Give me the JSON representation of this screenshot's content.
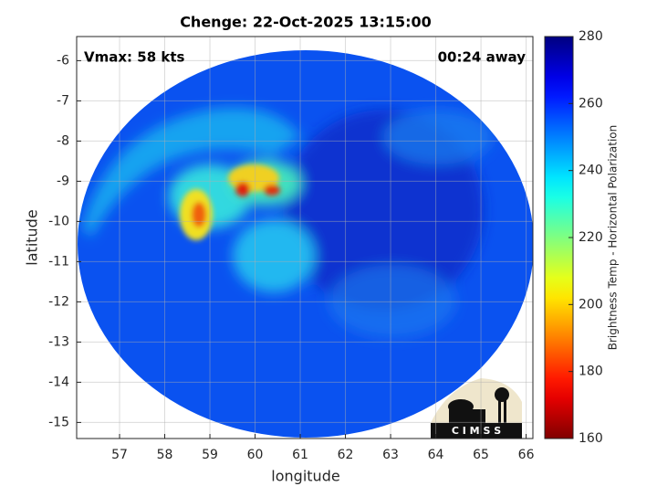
{
  "chart_data": {
    "type": "image",
    "title": "Chenge: 22-Oct-2025 13:15:00",
    "xlabel": "longitude",
    "ylabel": "latitude",
    "xlim": [
      56.05,
      66.15
    ],
    "xticks": [
      57,
      58,
      59,
      60,
      61,
      62,
      63,
      64,
      65,
      66
    ],
    "ylim": [
      -15.4,
      -5.4
    ],
    "yticks": [
      -15,
      -14,
      -13,
      -12,
      -11,
      -10,
      -9,
      -8,
      -7,
      -6
    ],
    "grid": true,
    "annotations": [
      "Vmax: 58 kts",
      "00:24 away"
    ],
    "colorbar": {
      "label": "Brightness Temp - Horizontal Polarization",
      "clim": [
        160,
        280
      ],
      "ticks": [
        160,
        180,
        200,
        220,
        240,
        260,
        280
      ],
      "colormap": "jet",
      "reverse": true
    },
    "logo": "C I M S S"
  }
}
